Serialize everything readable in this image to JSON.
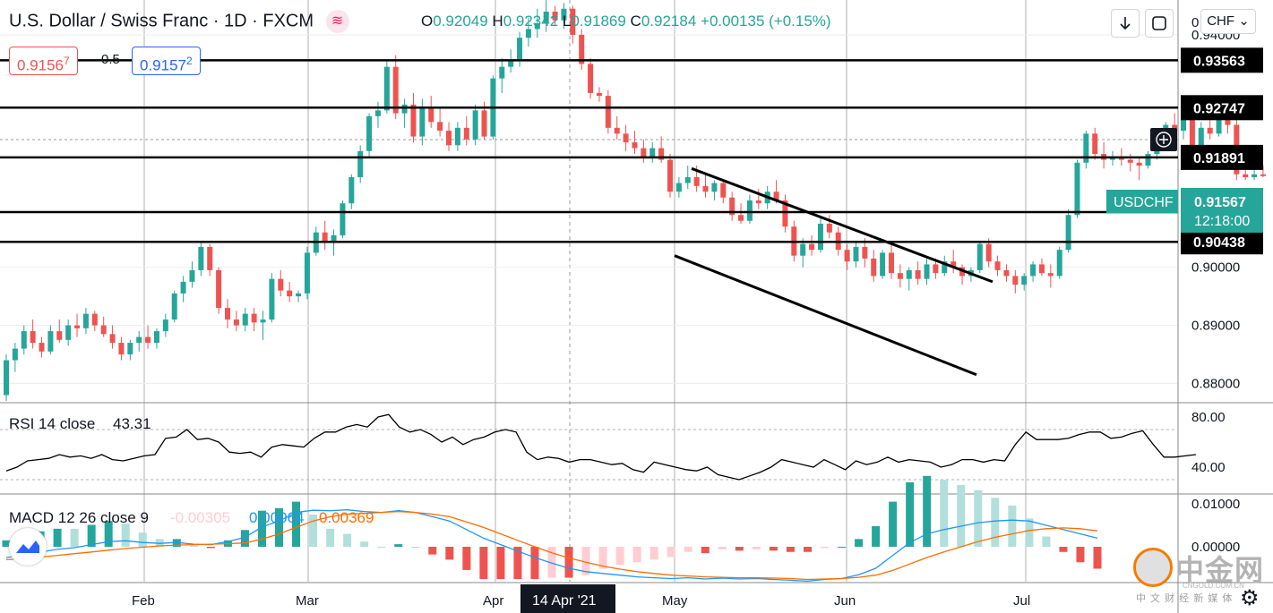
{
  "header": {
    "title": "U.S. Dollar / Swiss Franc · 1D · FXCM",
    "open_label": "O",
    "open": "0.92049",
    "high_label": "H",
    "high": "0.92342",
    "low_label": "L",
    "low": "0.91869",
    "close_label": "C",
    "close": "0.92184",
    "change": "+0.00135 (+0.15%)"
  },
  "trade": {
    "sell_price": "0.9156",
    "sell_pip": "7",
    "spread": "0.5",
    "buy_price": "0.9157",
    "buy_pip": "2"
  },
  "toolbar": {
    "currency": "CHF"
  },
  "colors": {
    "up": "#26a69a",
    "down": "#ef5350",
    "rsi": "#000000",
    "macd": "#2196f3",
    "signal": "#ff6d00",
    "hist_pos_strong": "#26a69a",
    "hist_pos_weak": "#b2dfdb",
    "hist_neg_strong": "#ef5350",
    "hist_neg_weak": "#ffcdd2"
  },
  "price_axis": {
    "ticks": [
      "0.94000",
      "0.90000",
      "0.89000",
      "0.88000"
    ],
    "top_partial": "0"
  },
  "horizontal_levels": [
    "0.93563",
    "0.92747",
    "0.91891",
    "0.90950",
    "0.90438"
  ],
  "symbol_tag": {
    "symbol": "USDCHF",
    "price": "0.91567",
    "countdown": "12:18:00"
  },
  "time_axis": {
    "labels": [
      "Feb",
      "Mar",
      "Apr",
      "May",
      "Jun",
      "Jul"
    ],
    "crosshair_label": "14 Apr '21"
  },
  "rsi": {
    "label": "RSI 14 close",
    "value": "43.31",
    "ticks": [
      "80.00",
      "40.00"
    ]
  },
  "macd": {
    "label": "MACD 12 26 close 9",
    "histogram": "-0.00305",
    "macd_value": "0.00064",
    "signal_value": "0.00369",
    "ticks": [
      "0.01000",
      "0.00000"
    ]
  },
  "watermark": {
    "name": "中金网",
    "url": "CNGOLD.COM.CN",
    "tagline": "中 文 财 经 新 媒 体"
  },
  "chart_data": {
    "type": "candlestick",
    "title": "U.S. Dollar / Swiss Franc · 1D · FXCM",
    "x_labels": [
      "Feb",
      "Mar",
      "Apr",
      "May",
      "Jun",
      "Jul"
    ],
    "price_range": [
      0.877,
      0.946
    ],
    "candles": [
      [
        0.878,
        0.885,
        0.877,
        0.884
      ],
      [
        0.884,
        0.887,
        0.882,
        0.886
      ],
      [
        0.886,
        0.89,
        0.885,
        0.889
      ],
      [
        0.889,
        0.891,
        0.886,
        0.887
      ],
      [
        0.887,
        0.888,
        0.8845,
        0.8855
      ],
      [
        0.8855,
        0.89,
        0.885,
        0.889
      ],
      [
        0.889,
        0.891,
        0.887,
        0.8875
      ],
      [
        0.8875,
        0.891,
        0.8865,
        0.89
      ],
      [
        0.89,
        0.892,
        0.888,
        0.8895
      ],
      [
        0.8895,
        0.893,
        0.8885,
        0.892
      ],
      [
        0.892,
        0.8925,
        0.889,
        0.89
      ],
      [
        0.89,
        0.8915,
        0.888,
        0.8885
      ],
      [
        0.8885,
        0.89,
        0.886,
        0.887
      ],
      [
        0.887,
        0.888,
        0.884,
        0.885
      ],
      [
        0.885,
        0.8875,
        0.884,
        0.887
      ],
      [
        0.887,
        0.889,
        0.8855,
        0.888
      ],
      [
        0.888,
        0.89,
        0.886,
        0.887
      ],
      [
        0.887,
        0.8895,
        0.886,
        0.889
      ],
      [
        0.889,
        0.892,
        0.888,
        0.891
      ],
      [
        0.891,
        0.896,
        0.8905,
        0.8955
      ],
      [
        0.8955,
        0.8985,
        0.894,
        0.8975
      ],
      [
        0.8975,
        0.901,
        0.8965,
        0.8995
      ],
      [
        0.8995,
        0.9045,
        0.8985,
        0.9035
      ],
      [
        0.9035,
        0.904,
        0.8985,
        0.8995
      ],
      [
        0.8995,
        0.9,
        0.892,
        0.893
      ],
      [
        0.893,
        0.8945,
        0.8895,
        0.891
      ],
      [
        0.891,
        0.8925,
        0.889,
        0.89
      ],
      [
        0.89,
        0.893,
        0.889,
        0.892
      ],
      [
        0.892,
        0.893,
        0.889,
        0.8905
      ],
      [
        0.8905,
        0.8925,
        0.8875,
        0.891
      ],
      [
        0.891,
        0.899,
        0.8905,
        0.898
      ],
      [
        0.898,
        0.8995,
        0.895,
        0.896
      ],
      [
        0.896,
        0.8975,
        0.894,
        0.895
      ],
      [
        0.895,
        0.896,
        0.894,
        0.8955
      ],
      [
        0.8955,
        0.9035,
        0.8945,
        0.9025
      ],
      [
        0.9025,
        0.907,
        0.902,
        0.906
      ],
      [
        0.906,
        0.908,
        0.903,
        0.9045
      ],
      [
        0.9045,
        0.9065,
        0.902,
        0.9055
      ],
      [
        0.9055,
        0.9115,
        0.905,
        0.911
      ],
      [
        0.911,
        0.916,
        0.91,
        0.9155
      ],
      [
        0.9155,
        0.921,
        0.9145,
        0.92
      ],
      [
        0.92,
        0.9265,
        0.919,
        0.926
      ],
      [
        0.926,
        0.9285,
        0.924,
        0.927
      ],
      [
        0.927,
        0.9355,
        0.9265,
        0.9345
      ],
      [
        0.9345,
        0.9365,
        0.9255,
        0.9265
      ],
      [
        0.9265,
        0.929,
        0.924,
        0.928
      ],
      [
        0.928,
        0.93,
        0.9215,
        0.9225
      ],
      [
        0.9225,
        0.929,
        0.921,
        0.9275
      ],
      [
        0.9275,
        0.9295,
        0.924,
        0.925
      ],
      [
        0.925,
        0.9275,
        0.9225,
        0.9235
      ],
      [
        0.9235,
        0.925,
        0.92,
        0.921
      ],
      [
        0.921,
        0.925,
        0.92,
        0.924
      ],
      [
        0.924,
        0.926,
        0.921,
        0.922
      ],
      [
        0.922,
        0.928,
        0.921,
        0.927
      ],
      [
        0.927,
        0.9285,
        0.922,
        0.9225
      ],
      [
        0.9225,
        0.933,
        0.922,
        0.9325
      ],
      [
        0.9325,
        0.936,
        0.93,
        0.9345
      ],
      [
        0.9345,
        0.9375,
        0.9335,
        0.9355
      ],
      [
        0.9355,
        0.9405,
        0.9345,
        0.9395
      ],
      [
        0.9395,
        0.943,
        0.938,
        0.941
      ],
      [
        0.941,
        0.9445,
        0.9395,
        0.942
      ],
      [
        0.942,
        0.946,
        0.9405,
        0.944
      ],
      [
        0.944,
        0.945,
        0.9415,
        0.9425
      ],
      [
        0.9425,
        0.9455,
        0.941,
        0.9445
      ],
      [
        0.9445,
        0.945,
        0.9385,
        0.94
      ],
      [
        0.94,
        0.941,
        0.934,
        0.935
      ],
      [
        0.935,
        0.936,
        0.929,
        0.93
      ],
      [
        0.93,
        0.931,
        0.9285,
        0.9295
      ],
      [
        0.9295,
        0.9305,
        0.923,
        0.924
      ],
      [
        0.924,
        0.926,
        0.922,
        0.923
      ],
      [
        0.923,
        0.9245,
        0.92,
        0.9215
      ],
      [
        0.9215,
        0.9235,
        0.9195,
        0.9205
      ],
      [
        0.9205,
        0.922,
        0.918,
        0.919
      ],
      [
        0.919,
        0.9215,
        0.918,
        0.9205
      ],
      [
        0.9205,
        0.9225,
        0.918,
        0.9185
      ],
      [
        0.9185,
        0.9195,
        0.912,
        0.913
      ],
      [
        0.913,
        0.9155,
        0.912,
        0.9145
      ],
      [
        0.9145,
        0.9175,
        0.9135,
        0.9155
      ],
      [
        0.9155,
        0.9175,
        0.913,
        0.914
      ],
      [
        0.914,
        0.916,
        0.912,
        0.913
      ],
      [
        0.913,
        0.915,
        0.9115,
        0.9145
      ],
      [
        0.9145,
        0.915,
        0.911,
        0.912
      ],
      [
        0.912,
        0.913,
        0.908,
        0.909
      ],
      [
        0.909,
        0.911,
        0.9075,
        0.908
      ],
      [
        0.908,
        0.9125,
        0.9075,
        0.9115
      ],
      [
        0.9115,
        0.9135,
        0.91,
        0.911
      ],
      [
        0.911,
        0.914,
        0.91,
        0.913
      ],
      [
        0.913,
        0.915,
        0.911,
        0.9115
      ],
      [
        0.9115,
        0.9125,
        0.906,
        0.907
      ],
      [
        0.907,
        0.908,
        0.901,
        0.902
      ],
      [
        0.902,
        0.905,
        0.9,
        0.904
      ],
      [
        0.904,
        0.9055,
        0.902,
        0.903
      ],
      [
        0.903,
        0.9085,
        0.9025,
        0.9075
      ],
      [
        0.9075,
        0.909,
        0.905,
        0.906
      ],
      [
        0.906,
        0.907,
        0.902,
        0.903
      ],
      [
        0.903,
        0.904,
        0.8995,
        0.901
      ],
      [
        0.901,
        0.9045,
        0.9,
        0.9035
      ],
      [
        0.9035,
        0.905,
        0.9,
        0.9015
      ],
      [
        0.9015,
        0.903,
        0.8975,
        0.8985
      ],
      [
        0.8985,
        0.903,
        0.898,
        0.9025
      ],
      [
        0.9025,
        0.904,
        0.898,
        0.899
      ],
      [
        0.899,
        0.9005,
        0.8965,
        0.898
      ],
      [
        0.898,
        0.9,
        0.896,
        0.8995
      ],
      [
        0.8995,
        0.901,
        0.897,
        0.898
      ],
      [
        0.898,
        0.9015,
        0.897,
        0.9005
      ],
      [
        0.9005,
        0.9015,
        0.898,
        0.899
      ],
      [
        0.899,
        0.902,
        0.8985,
        0.901
      ],
      [
        0.901,
        0.903,
        0.899,
        0.9
      ],
      [
        0.9,
        0.9005,
        0.897,
        0.8985
      ],
      [
        0.8985,
        0.9,
        0.8975,
        0.8995
      ],
      [
        0.8995,
        0.9045,
        0.899,
        0.904
      ],
      [
        0.904,
        0.905,
        0.9,
        0.901
      ],
      [
        0.901,
        0.902,
        0.8985,
        0.8995
      ],
      [
        0.8995,
        0.9005,
        0.8975,
        0.8985
      ],
      [
        0.8985,
        0.8995,
        0.8955,
        0.897
      ],
      [
        0.897,
        0.899,
        0.896,
        0.8985
      ],
      [
        0.8985,
        0.901,
        0.8975,
        0.9005
      ],
      [
        0.9005,
        0.9015,
        0.8985,
        0.899
      ],
      [
        0.899,
        0.9005,
        0.8965,
        0.8985
      ],
      [
        0.8985,
        0.9035,
        0.898,
        0.903
      ],
      [
        0.903,
        0.91,
        0.9025,
        0.909
      ],
      [
        0.909,
        0.9185,
        0.9085,
        0.918
      ],
      [
        0.918,
        0.9235,
        0.917,
        0.923
      ],
      [
        0.923,
        0.924,
        0.9185,
        0.9195
      ],
      [
        0.9195,
        0.9215,
        0.917,
        0.9185
      ],
      [
        0.9185,
        0.92,
        0.9175,
        0.919
      ],
      [
        0.919,
        0.9205,
        0.9175,
        0.9185
      ],
      [
        0.9185,
        0.9195,
        0.9165,
        0.918
      ],
      [
        0.918,
        0.919,
        0.915,
        0.9175
      ],
      [
        0.9175,
        0.92,
        0.917,
        0.9195
      ],
      [
        0.9195,
        0.921,
        0.9185,
        0.9205
      ],
      [
        0.9205,
        0.925,
        0.92,
        0.9245
      ],
      [
        0.9245,
        0.9265,
        0.9225,
        0.9235
      ],
      [
        0.9235,
        0.926,
        0.922,
        0.9255
      ],
      [
        0.9255,
        0.9275,
        0.92,
        0.921
      ],
      [
        0.921,
        0.925,
        0.92,
        0.924
      ],
      [
        0.924,
        0.9255,
        0.922,
        0.923
      ],
      [
        0.923,
        0.927,
        0.9225,
        0.9255
      ],
      [
        0.9255,
        0.9265,
        0.923,
        0.9245
      ],
      [
        0.9245,
        0.926,
        0.915,
        0.916
      ],
      [
        0.916,
        0.918,
        0.915,
        0.9155
      ],
      [
        0.9155,
        0.917,
        0.915,
        0.916
      ],
      [
        0.916,
        0.9175,
        0.9155,
        0.9157
      ]
    ],
    "rsi_values": [
      37,
      40,
      45,
      46,
      47,
      50,
      48,
      49,
      47,
      50,
      46,
      45,
      47,
      49,
      50,
      63,
      64,
      70,
      62,
      63,
      60,
      52,
      51,
      52,
      48,
      56,
      58,
      57,
      56,
      63,
      68,
      68,
      72,
      74,
      72,
      80,
      82,
      72,
      68,
      70,
      66,
      60,
      64,
      58,
      62,
      64,
      68,
      70,
      68,
      52,
      46,
      48,
      47,
      44,
      46,
      46,
      44,
      42,
      43,
      38,
      36,
      44,
      42,
      40,
      38,
      37,
      40,
      34,
      32,
      30,
      33,
      36,
      40,
      46,
      44,
      42,
      40,
      46,
      42,
      38,
      45,
      42,
      44,
      48,
      44,
      46,
      45,
      44,
      40,
      42,
      46,
      46,
      44,
      46,
      45,
      58,
      68,
      62,
      62,
      62,
      63,
      66,
      68,
      68,
      63,
      64,
      67,
      69,
      58,
      48,
      48,
      49,
      50
    ],
    "macd_values": [
      -0.0025,
      -0.002,
      -0.0012,
      -0.0006,
      -0.0002,
      0.0005,
      0.0012,
      0.0014,
      0.001,
      0.0008,
      0.001,
      0.0006,
      0.0005,
      0.0012,
      0.0022,
      0.0046,
      0.006,
      0.008,
      0.0085,
      0.0084,
      0.0086,
      0.0082,
      0.008,
      0.0084,
      0.008,
      0.007,
      0.006,
      0.004,
      0.002,
      0.0005,
      -0.001,
      -0.0025,
      -0.0038,
      -0.005,
      -0.0058,
      -0.0062,
      -0.0066,
      -0.007,
      -0.0072,
      -0.0074,
      -0.0072,
      -0.0075,
      -0.0073,
      -0.0075,
      -0.0074,
      -0.0076,
      -0.0078,
      -0.008,
      -0.0076,
      -0.0074,
      -0.0065,
      -0.005,
      -0.002,
      0.001,
      0.003,
      0.004,
      0.0048,
      0.0056,
      0.006,
      0.0062,
      0.006,
      0.005,
      0.004,
      0.003,
      0.002
    ],
    "signal_values": [
      -0.003,
      -0.0028,
      -0.0024,
      -0.002,
      -0.0016,
      -0.0012,
      -0.0008,
      -0.0004,
      -0.0001,
      0.0002,
      0.0004,
      0.0005,
      0.0006,
      0.0007,
      0.0009,
      0.0018,
      0.003,
      0.0045,
      0.006,
      0.007,
      0.0076,
      0.0078,
      0.008,
      0.0082,
      0.008,
      0.0076,
      0.007,
      0.0058,
      0.0045,
      0.003,
      0.0015,
      0.0,
      -0.0014,
      -0.0026,
      -0.0036,
      -0.0045,
      -0.0052,
      -0.0058,
      -0.0062,
      -0.0066,
      -0.0068,
      -0.007,
      -0.0071,
      -0.0072,
      -0.0072,
      -0.0073,
      -0.0074,
      -0.0076,
      -0.0075,
      -0.0074,
      -0.0071,
      -0.0066,
      -0.0055,
      -0.004,
      -0.0025,
      -0.0012,
      0.0,
      0.0012,
      0.0022,
      0.003,
      0.0038,
      0.0042,
      0.0044,
      0.0042,
      0.0037
    ],
    "levels": [
      0.93563,
      0.92747,
      0.91891,
      0.9095,
      0.90438
    ],
    "channel_lines": [
      {
        "from": [
          "May",
          0.917
        ],
        "to": [
          "Jun-end",
          0.8975
        ]
      },
      {
        "from": [
          "May",
          0.902
        ],
        "to": [
          "Jun-end",
          0.8815
        ]
      }
    ]
  }
}
